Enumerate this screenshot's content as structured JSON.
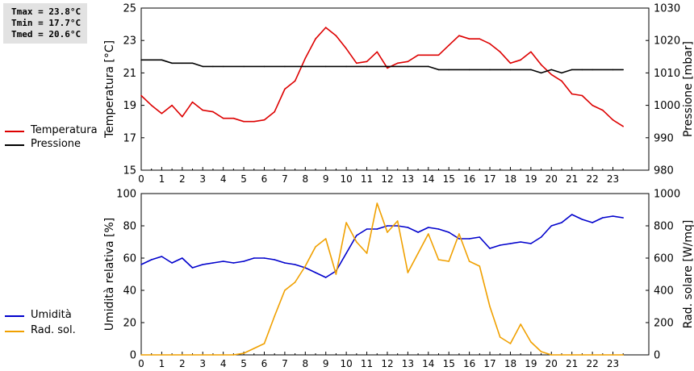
{
  "stats": {
    "tmax": "Tmax = 23.8°C",
    "tmin": "Tmin = 17.7°C",
    "tmed": "Tmed = 20.6°C"
  },
  "chart_data": [
    {
      "type": "line",
      "x_ticks": [
        "0",
        "1",
        "2",
        "3",
        "4",
        "5",
        "6",
        "7",
        "8",
        "9",
        "10",
        "11",
        "12",
        "13",
        "14",
        "15",
        "16",
        "17",
        "18",
        "19",
        "20",
        "21",
        "22",
        "23"
      ],
      "xlim": [
        0,
        24.75
      ],
      "ylabel": "Temperatura [°C]",
      "ylim": [
        15,
        25
      ],
      "y_ticks": [
        "15",
        "17",
        "19",
        "21",
        "23",
        "25"
      ],
      "y2label": "Pressione [mbar]",
      "y2lim": [
        980,
        1030
      ],
      "y2_ticks": [
        "980",
        "990",
        "1000",
        "1010",
        "1020",
        "1030"
      ],
      "grid": false,
      "legend_placement": "left",
      "series": [
        {
          "name": "Temperatura",
          "axis": "left",
          "color": "#dd0000",
          "x": [
            0,
            0.5,
            1,
            1.5,
            2,
            2.5,
            3,
            3.5,
            4,
            4.5,
            5,
            5.5,
            6,
            6.5,
            7,
            7.5,
            8,
            8.5,
            9,
            9.5,
            10,
            10.5,
            11,
            11.5,
            12,
            12.5,
            13,
            13.5,
            14,
            14.5,
            15,
            15.5,
            16,
            16.5,
            17,
            17.5,
            18,
            18.5,
            19,
            19.5,
            20,
            20.5,
            21,
            21.5,
            22,
            22.5,
            23,
            23.5
          ],
          "values": [
            19.6,
            19.0,
            18.5,
            19.0,
            18.3,
            19.2,
            18.7,
            18.6,
            18.2,
            18.2,
            18.0,
            18.0,
            18.1,
            18.6,
            20.0,
            20.5,
            21.9,
            23.1,
            23.8,
            23.3,
            22.5,
            21.6,
            21.7,
            22.3,
            21.3,
            21.6,
            21.7,
            22.1,
            22.1,
            22.1,
            22.7,
            23.3,
            23.1,
            23.1,
            22.8,
            22.3,
            21.6,
            21.8,
            22.3,
            21.5,
            20.9,
            20.5,
            19.7,
            19.6,
            19.0,
            18.7,
            18.1,
            17.7
          ]
        },
        {
          "name": "Pressione",
          "axis": "right",
          "color": "#000000",
          "x": [
            0,
            1,
            1.5,
            2,
            2.5,
            3,
            3.5,
            4,
            5,
            6,
            7,
            8,
            9,
            10,
            11,
            12,
            13,
            14,
            14.5,
            15,
            16,
            17,
            18,
            19,
            19.5,
            20,
            20.5,
            21,
            21.5,
            22,
            23,
            23.5
          ],
          "values": [
            1014,
            1014,
            1013,
            1013,
            1013,
            1012,
            1012,
            1012,
            1012,
            1012,
            1012,
            1012,
            1012,
            1012,
            1012,
            1012,
            1012,
            1012,
            1011,
            1011,
            1011,
            1011,
            1011,
            1011,
            1010,
            1011,
            1010,
            1011,
            1011,
            1011,
            1011,
            1011
          ]
        }
      ]
    },
    {
      "type": "line",
      "x_ticks": [
        "0",
        "1",
        "2",
        "3",
        "4",
        "5",
        "6",
        "7",
        "8",
        "9",
        "10",
        "11",
        "12",
        "13",
        "14",
        "15",
        "16",
        "17",
        "18",
        "19",
        "20",
        "21",
        "22",
        "23"
      ],
      "xlim": [
        0,
        24.75
      ],
      "ylabel": "Umidità relativa [%]",
      "ylim": [
        0,
        100
      ],
      "y_ticks": [
        "0",
        "20",
        "40",
        "60",
        "80",
        "100"
      ],
      "y2label": "Rad. solare [W/mq]",
      "y2lim": [
        0,
        1000
      ],
      "y2_ticks": [
        "0",
        "200",
        "400",
        "600",
        "800",
        "1000"
      ],
      "grid": false,
      "legend_placement": "left",
      "series": [
        {
          "name": "Umidità",
          "axis": "left",
          "color": "#0000cc",
          "x": [
            0,
            0.5,
            1,
            1.5,
            2,
            2.5,
            3,
            3.5,
            4,
            4.5,
            5,
            5.5,
            6,
            6.5,
            7,
            7.5,
            8,
            8.5,
            9,
            9.5,
            10,
            10.5,
            11,
            11.5,
            12,
            12.5,
            13,
            13.5,
            14,
            14.5,
            15,
            15.5,
            16,
            16.5,
            17,
            17.5,
            18,
            18.5,
            19,
            19.5,
            20,
            20.5,
            21,
            21.5,
            22,
            22.5,
            23,
            23.5
          ],
          "values": [
            56,
            59,
            61,
            57,
            60,
            54,
            56,
            57,
            58,
            57,
            58,
            60,
            60,
            59,
            57,
            56,
            54,
            51,
            48,
            52,
            63,
            74,
            78,
            78,
            80,
            80,
            79,
            76,
            79,
            78,
            76,
            72,
            72,
            73,
            66,
            68,
            69,
            70,
            69,
            73,
            80,
            82,
            87,
            84,
            82,
            85,
            86,
            85
          ]
        },
        {
          "name": "Rad. sol.",
          "axis": "right",
          "color": "#f0a000",
          "x": [
            0,
            0.5,
            1,
            1.5,
            2,
            2.5,
            3,
            3.5,
            4,
            4.5,
            5,
            5.5,
            6,
            6.5,
            7,
            7.5,
            8,
            8.5,
            9,
            9.5,
            10,
            10.5,
            11,
            11.5,
            12,
            12.5,
            13,
            13.5,
            14,
            14.5,
            15,
            15.5,
            16,
            16.5,
            17,
            17.5,
            18,
            18.5,
            19,
            19.5,
            20,
            20.5,
            21,
            21.5,
            22,
            22.5,
            23,
            23.5
          ],
          "values": [
            0,
            0,
            0,
            0,
            0,
            0,
            0,
            0,
            0,
            0,
            10,
            40,
            70,
            240,
            400,
            450,
            550,
            670,
            720,
            500,
            820,
            700,
            630,
            940,
            760,
            830,
            510,
            630,
            750,
            590,
            580,
            750,
            580,
            550,
            300,
            110,
            70,
            190,
            80,
            20,
            0,
            0,
            0,
            0,
            0,
            0,
            0,
            0
          ]
        }
      ]
    }
  ]
}
